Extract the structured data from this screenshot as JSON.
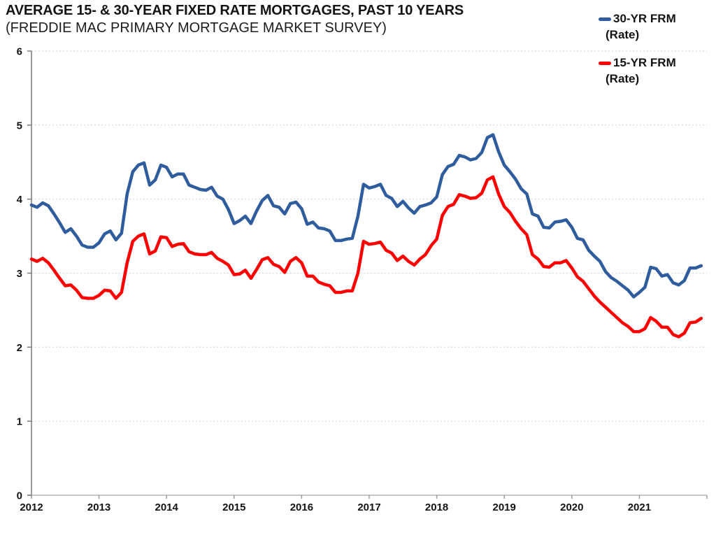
{
  "title": "AVERAGE 15- & 30-YEAR FIXED RATE MORTGAGES, PAST 10 YEARS",
  "subtitle": "(FREDDIE MAC PRIMARY MORTGAGE MARKET SURVEY)",
  "legend": {
    "items": [
      {
        "line1": "30-YR FRM",
        "line2": "(Rate)",
        "color": "#2E5C9C"
      },
      {
        "line1": "15-YR FRM",
        "line2": "(Rate)",
        "color": "#FF0000"
      }
    ]
  },
  "colors": {
    "blue": "#2E5C9C",
    "red": "#FF0000",
    "gridline": "#D2D2D2",
    "y_axis": "#7A7A7A",
    "x_axis": "#C6C6C6",
    "tick": "#9A9A9A",
    "label_text": "#141414"
  },
  "chart_data": {
    "type": "line",
    "title": "AVERAGE 15- & 30-YEAR FIXED RATE MORTGAGES, PAST 10 YEARS",
    "subtitle": "(FREDDIE MAC PRIMARY MORTGAGE MARKET SURVEY)",
    "xlabel": "",
    "ylabel": "",
    "frequency": "monthly",
    "x_range": [
      "2012-01",
      "2021-12"
    ],
    "x_tick_labels": [
      "2012",
      "2013",
      "2014",
      "2015",
      "2016",
      "2017",
      "2018",
      "2019",
      "2020",
      "2021"
    ],
    "y_ticks": [
      0,
      1,
      2,
      3,
      4,
      5,
      6
    ],
    "ylim": [
      0,
      6
    ],
    "grid": "horizontal-dotted",
    "legend_position": "top-right",
    "series": [
      {
        "name": "30-YR FRM (Rate)",
        "color": "#2E5C9C",
        "values": [
          3.92,
          3.89,
          3.95,
          3.91,
          3.8,
          3.68,
          3.55,
          3.6,
          3.5,
          3.38,
          3.35,
          3.35,
          3.41,
          3.53,
          3.57,
          3.45,
          3.54,
          4.07,
          4.37,
          4.46,
          4.49,
          4.19,
          4.26,
          4.46,
          4.43,
          4.3,
          4.34,
          4.34,
          4.19,
          4.16,
          4.13,
          4.12,
          4.16,
          4.04,
          4.0,
          3.86,
          3.67,
          3.71,
          3.77,
          3.67,
          3.84,
          3.98,
          4.05,
          3.91,
          3.89,
          3.8,
          3.94,
          3.96,
          3.87,
          3.66,
          3.69,
          3.61,
          3.6,
          3.57,
          3.44,
          3.44,
          3.46,
          3.47,
          3.77,
          4.2,
          4.15,
          4.17,
          4.2,
          4.05,
          4.01,
          3.9,
          3.97,
          3.88,
          3.81,
          3.9,
          3.92,
          3.95,
          4.03,
          4.33,
          4.44,
          4.47,
          4.59,
          4.57,
          4.53,
          4.55,
          4.63,
          4.83,
          4.87,
          4.64,
          4.46,
          4.37,
          4.27,
          4.14,
          4.07,
          3.8,
          3.77,
          3.62,
          3.61,
          3.69,
          3.7,
          3.72,
          3.62,
          3.47,
          3.45,
          3.31,
          3.23,
          3.16,
          3.02,
          2.94,
          2.89,
          2.83,
          2.77,
          2.68,
          2.74,
          2.81,
          3.08,
          3.06,
          2.96,
          2.98,
          2.87,
          2.84,
          2.9,
          3.07,
          3.07,
          3.1
        ]
      },
      {
        "name": "15-YR FRM (Rate)",
        "color": "#FF0000",
        "values": [
          3.19,
          3.16,
          3.2,
          3.14,
          3.04,
          2.93,
          2.83,
          2.84,
          2.77,
          2.67,
          2.66,
          2.66,
          2.7,
          2.77,
          2.76,
          2.66,
          2.74,
          3.14,
          3.43,
          3.5,
          3.53,
          3.26,
          3.3,
          3.49,
          3.48,
          3.36,
          3.39,
          3.4,
          3.29,
          3.26,
          3.25,
          3.25,
          3.28,
          3.2,
          3.16,
          3.11,
          2.98,
          2.99,
          3.04,
          2.93,
          3.05,
          3.18,
          3.21,
          3.12,
          3.09,
          3.01,
          3.16,
          3.21,
          3.14,
          2.96,
          2.96,
          2.88,
          2.85,
          2.83,
          2.74,
          2.74,
          2.76,
          2.76,
          3.0,
          3.43,
          3.39,
          3.4,
          3.42,
          3.31,
          3.27,
          3.17,
          3.23,
          3.16,
          3.11,
          3.19,
          3.25,
          3.37,
          3.46,
          3.78,
          3.9,
          3.93,
          4.06,
          4.04,
          4.01,
          4.02,
          4.08,
          4.26,
          4.3,
          4.07,
          3.9,
          3.82,
          3.7,
          3.6,
          3.52,
          3.25,
          3.19,
          3.09,
          3.08,
          3.14,
          3.14,
          3.17,
          3.07,
          2.95,
          2.89,
          2.79,
          2.69,
          2.61,
          2.54,
          2.47,
          2.4,
          2.33,
          2.28,
          2.21,
          2.21,
          2.25,
          2.4,
          2.35,
          2.27,
          2.27,
          2.17,
          2.14,
          2.19,
          2.33,
          2.34,
          2.39
        ]
      }
    ]
  }
}
